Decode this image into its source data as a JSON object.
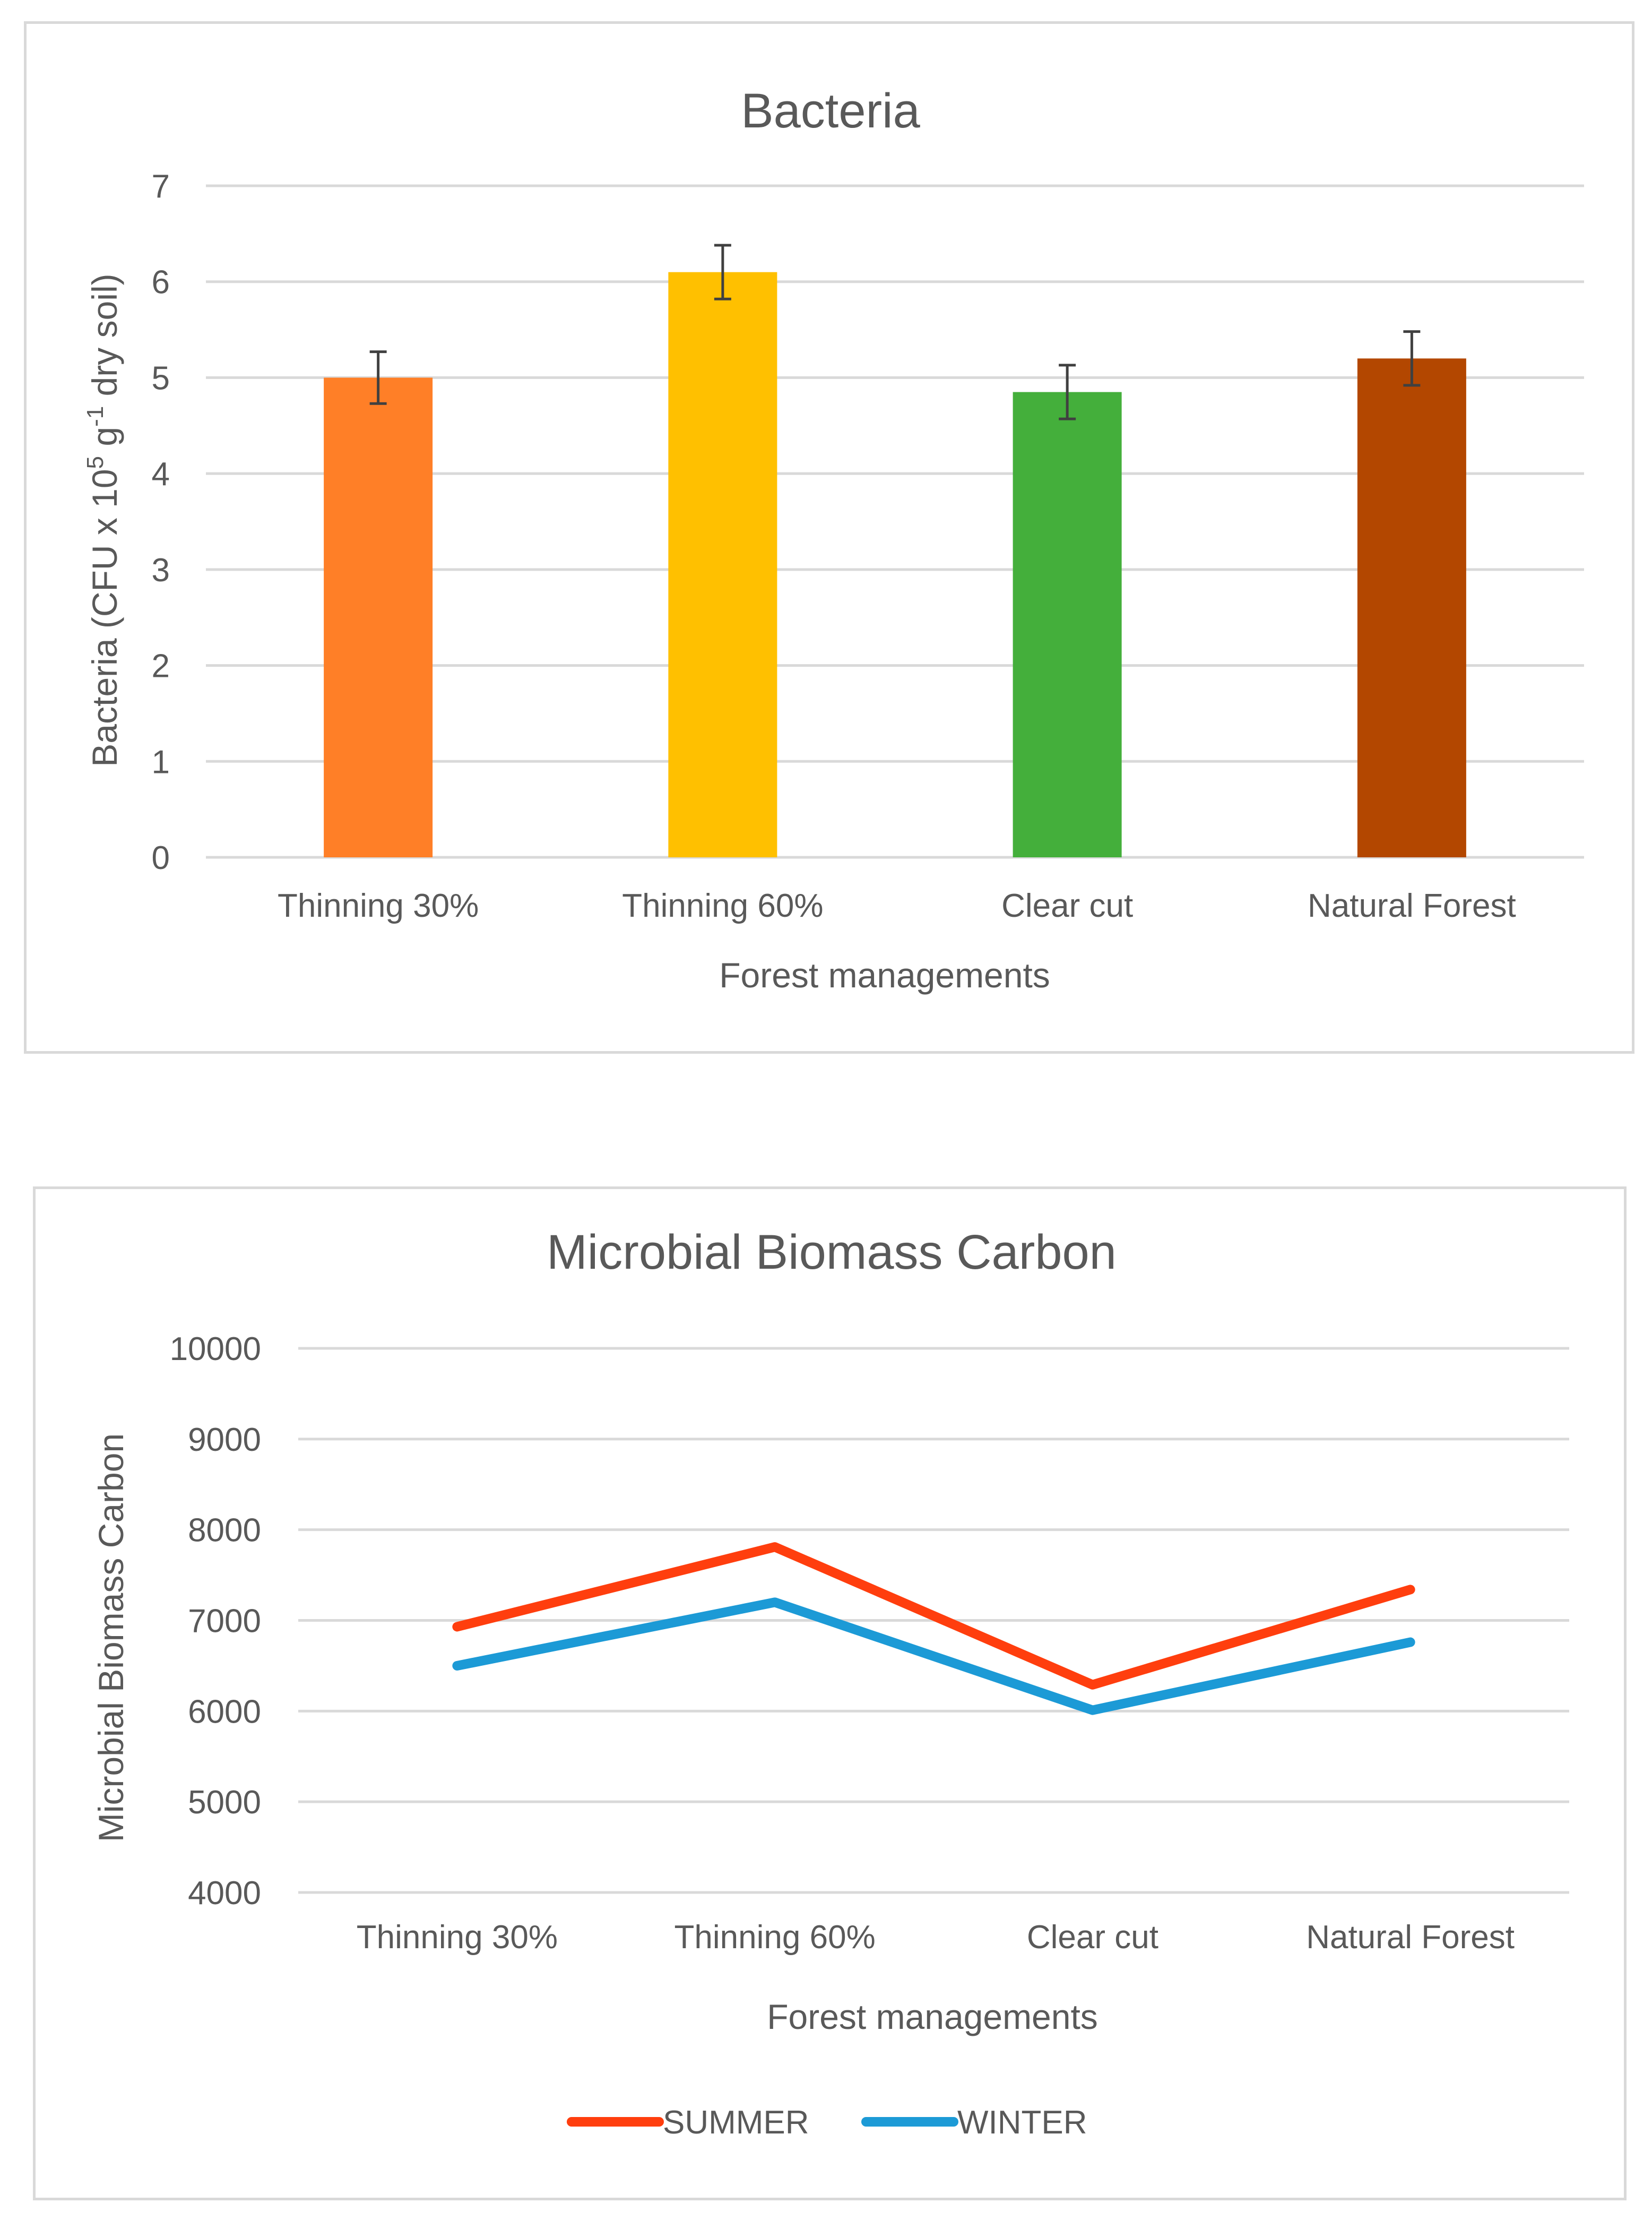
{
  "chart_data": [
    {
      "type": "bar",
      "title": "Bacteria",
      "xlabel": "Forest managements",
      "ylabel": {
        "prefix": "Bacteria (CFU x 10",
        "sup1": "5",
        "middle": " g",
        "sup2": "-1",
        "suffix": " dry soil)"
      },
      "categories": [
        "Thinning 30%",
        "Thinning 60%",
        "Clear cut",
        "Natural Forest"
      ],
      "values": [
        5.0,
        6.1,
        4.85,
        5.2
      ],
      "errors": [
        0.27,
        0.28,
        0.28,
        0.28
      ],
      "colors": [
        "#FF7F27",
        "#FFC000",
        "#44AF3B",
        "#B34700"
      ],
      "ylim": [
        0,
        7
      ],
      "yticks": [
        0,
        1,
        2,
        3,
        4,
        5,
        6,
        7
      ],
      "grid": true,
      "legend": "none"
    },
    {
      "type": "line",
      "title": "Microbial Biomass Carbon",
      "xlabel": "Forest managements",
      "ylabel": "Microbial Biomass Carbon",
      "categories": [
        "Thinning 30%",
        "Thinning 60%",
        "Clear cut",
        "Natural Forest"
      ],
      "series": [
        {
          "name": "SUMMER",
          "values": [
            6930,
            7810,
            6290,
            7340
          ],
          "color": "#FF3E0E"
        },
        {
          "name": "WINTER",
          "values": [
            6500,
            7200,
            6010,
            6760
          ],
          "color": "#1C9AD6"
        }
      ],
      "ylim": [
        4000,
        10000
      ],
      "yticks": [
        4000,
        5000,
        6000,
        7000,
        8000,
        9000,
        10000
      ],
      "grid": true,
      "legend": "bottom"
    }
  ]
}
